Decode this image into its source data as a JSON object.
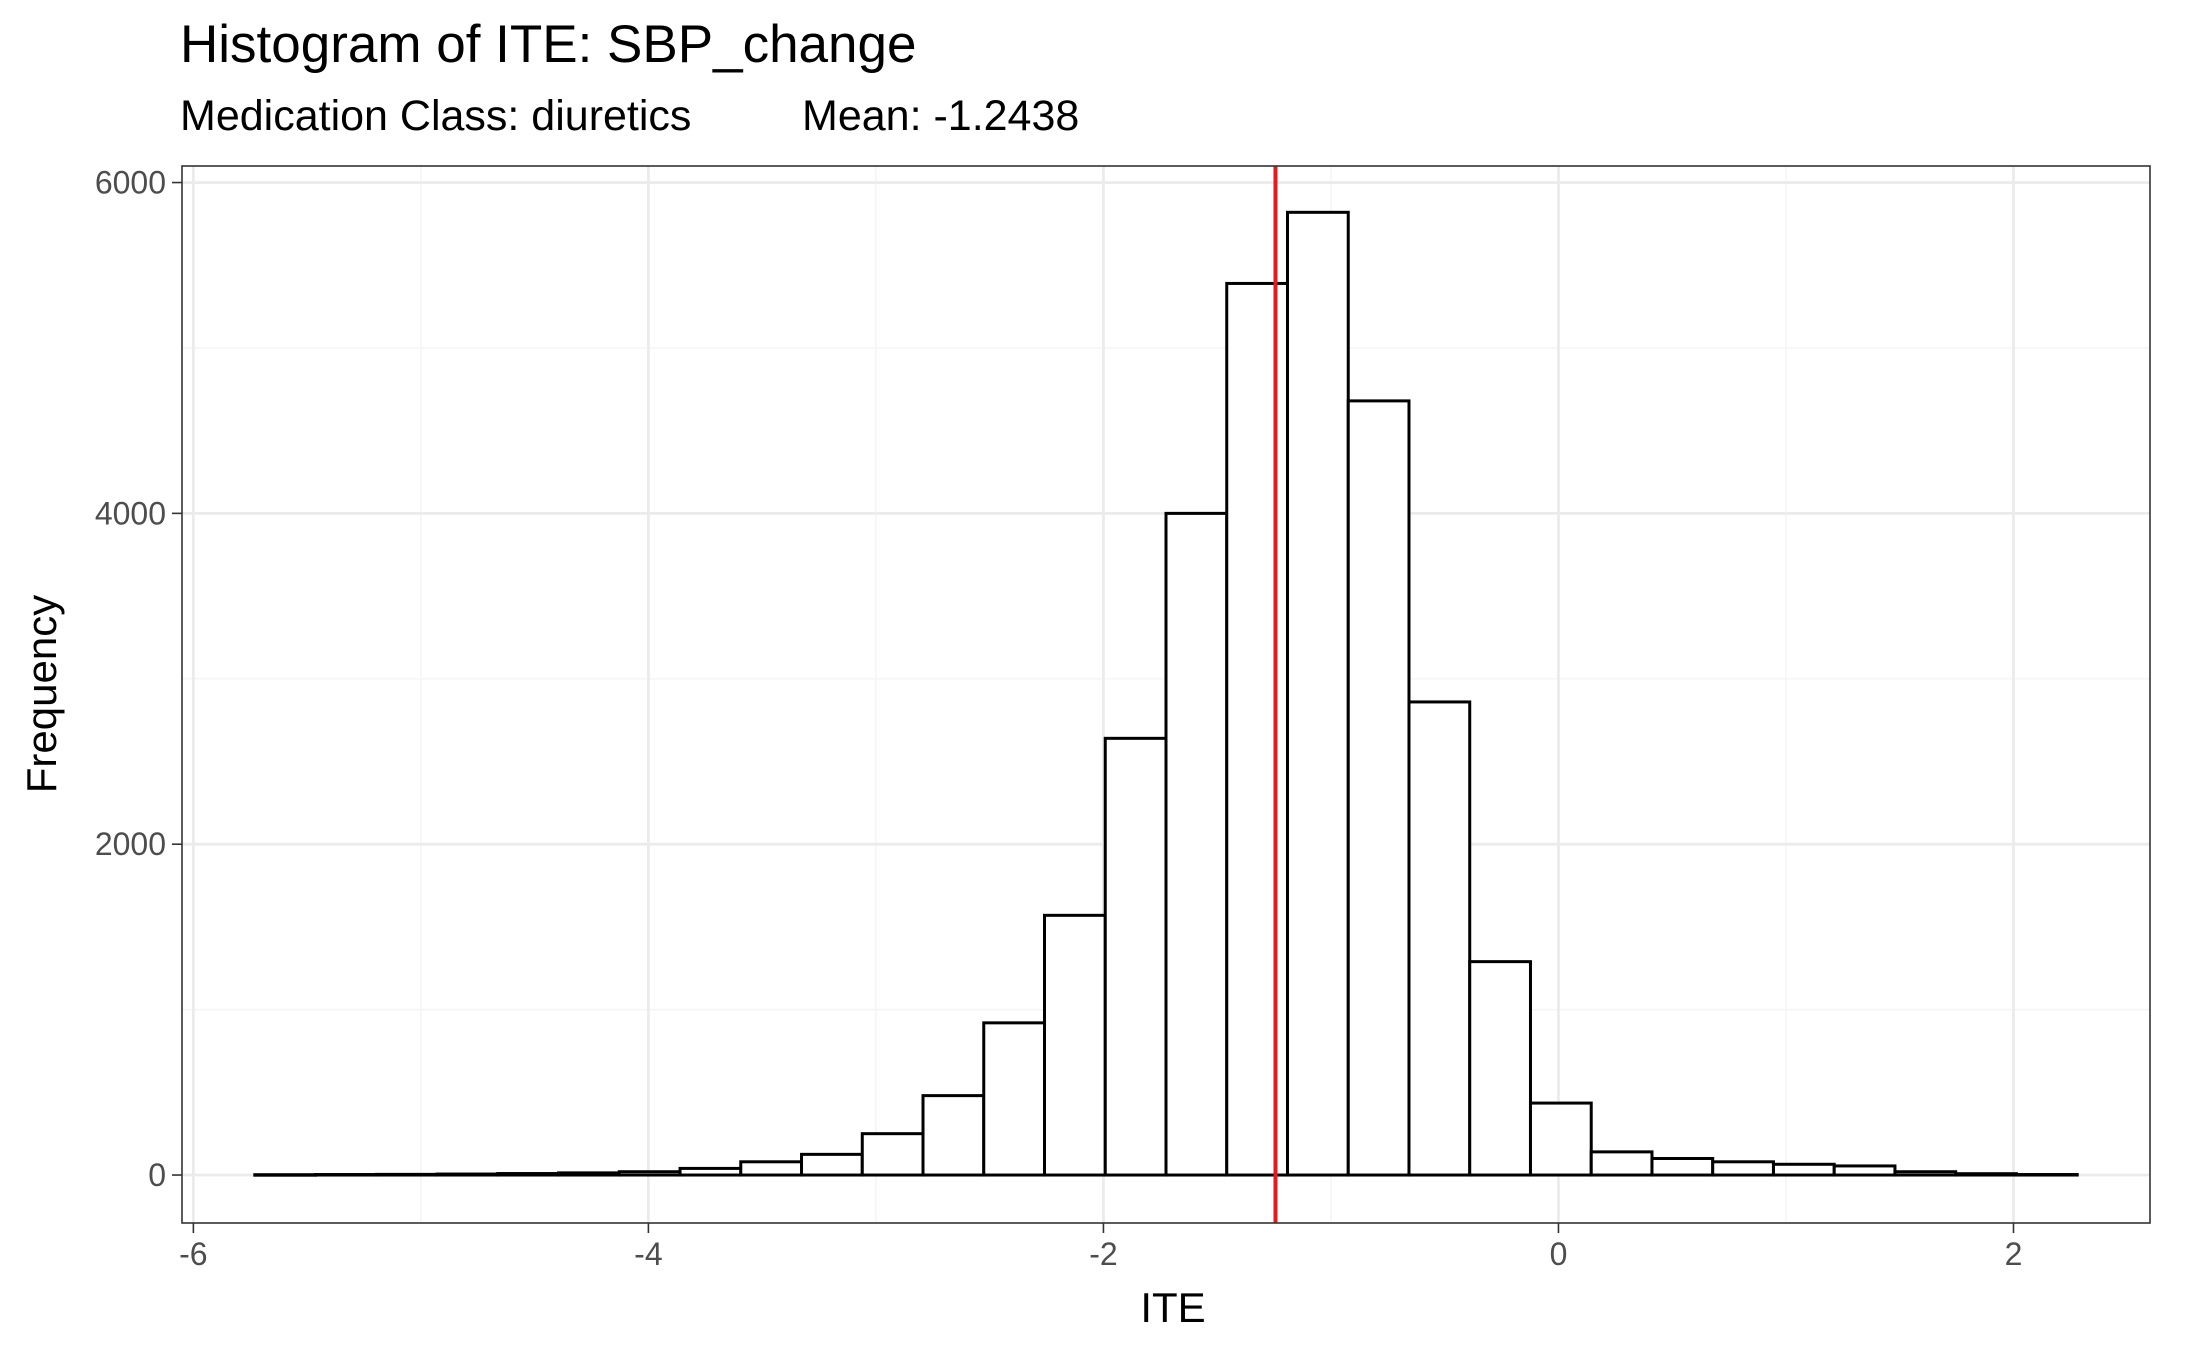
{
  "chart_data": {
    "type": "bar",
    "title": "Histogram of ITE: SBP_change",
    "subtitle": "Medication Class: diuretics",
    "subtitle_mean": "Mean: -1.2438",
    "xlabel": "ITE",
    "ylabel": "Frequency",
    "xlim": [
      -6.05,
      2.6
    ],
    "ylim": [
      -290,
      6100
    ],
    "x_ticks": [
      -6,
      -4,
      -2,
      0,
      2
    ],
    "x_tick_labels": [
      "-6",
      "-4",
      "-2",
      "0",
      "2"
    ],
    "y_ticks": [
      0,
      2000,
      4000,
      6000
    ],
    "y_tick_labels": [
      "0",
      "2000",
      "4000",
      "6000"
    ],
    "bin_width": 0.267,
    "bins_start": [
      -5.73,
      -5.463,
      -5.196,
      -4.929,
      -4.662,
      -4.395,
      -4.128,
      -3.861,
      -3.594,
      -3.327,
      -3.06,
      -2.793,
      -2.526,
      -2.259,
      -1.992,
      -1.725,
      -1.458,
      -1.191,
      -0.924,
      -0.657,
      -0.39,
      -0.123,
      0.144,
      0.411,
      0.678,
      0.945,
      1.212,
      1.479,
      1.746,
      2.013
    ],
    "counts": [
      2,
      3,
      4,
      6,
      9,
      13,
      20,
      40,
      80,
      125,
      250,
      480,
      920,
      1570,
      2640,
      4000,
      5390,
      5820,
      4680,
      2860,
      1290,
      435,
      140,
      100,
      80,
      65,
      55,
      20,
      8,
      3
    ],
    "mean_line": -1.2438,
    "colors": {
      "bar_fill": "#ffffff",
      "bar_stroke": "#000000",
      "mean_line": "#e41a1c",
      "grid_major": "#ebebeb",
      "grid_minor": "#f4f4f4",
      "panel_border": "#333333"
    },
    "grid": true
  }
}
